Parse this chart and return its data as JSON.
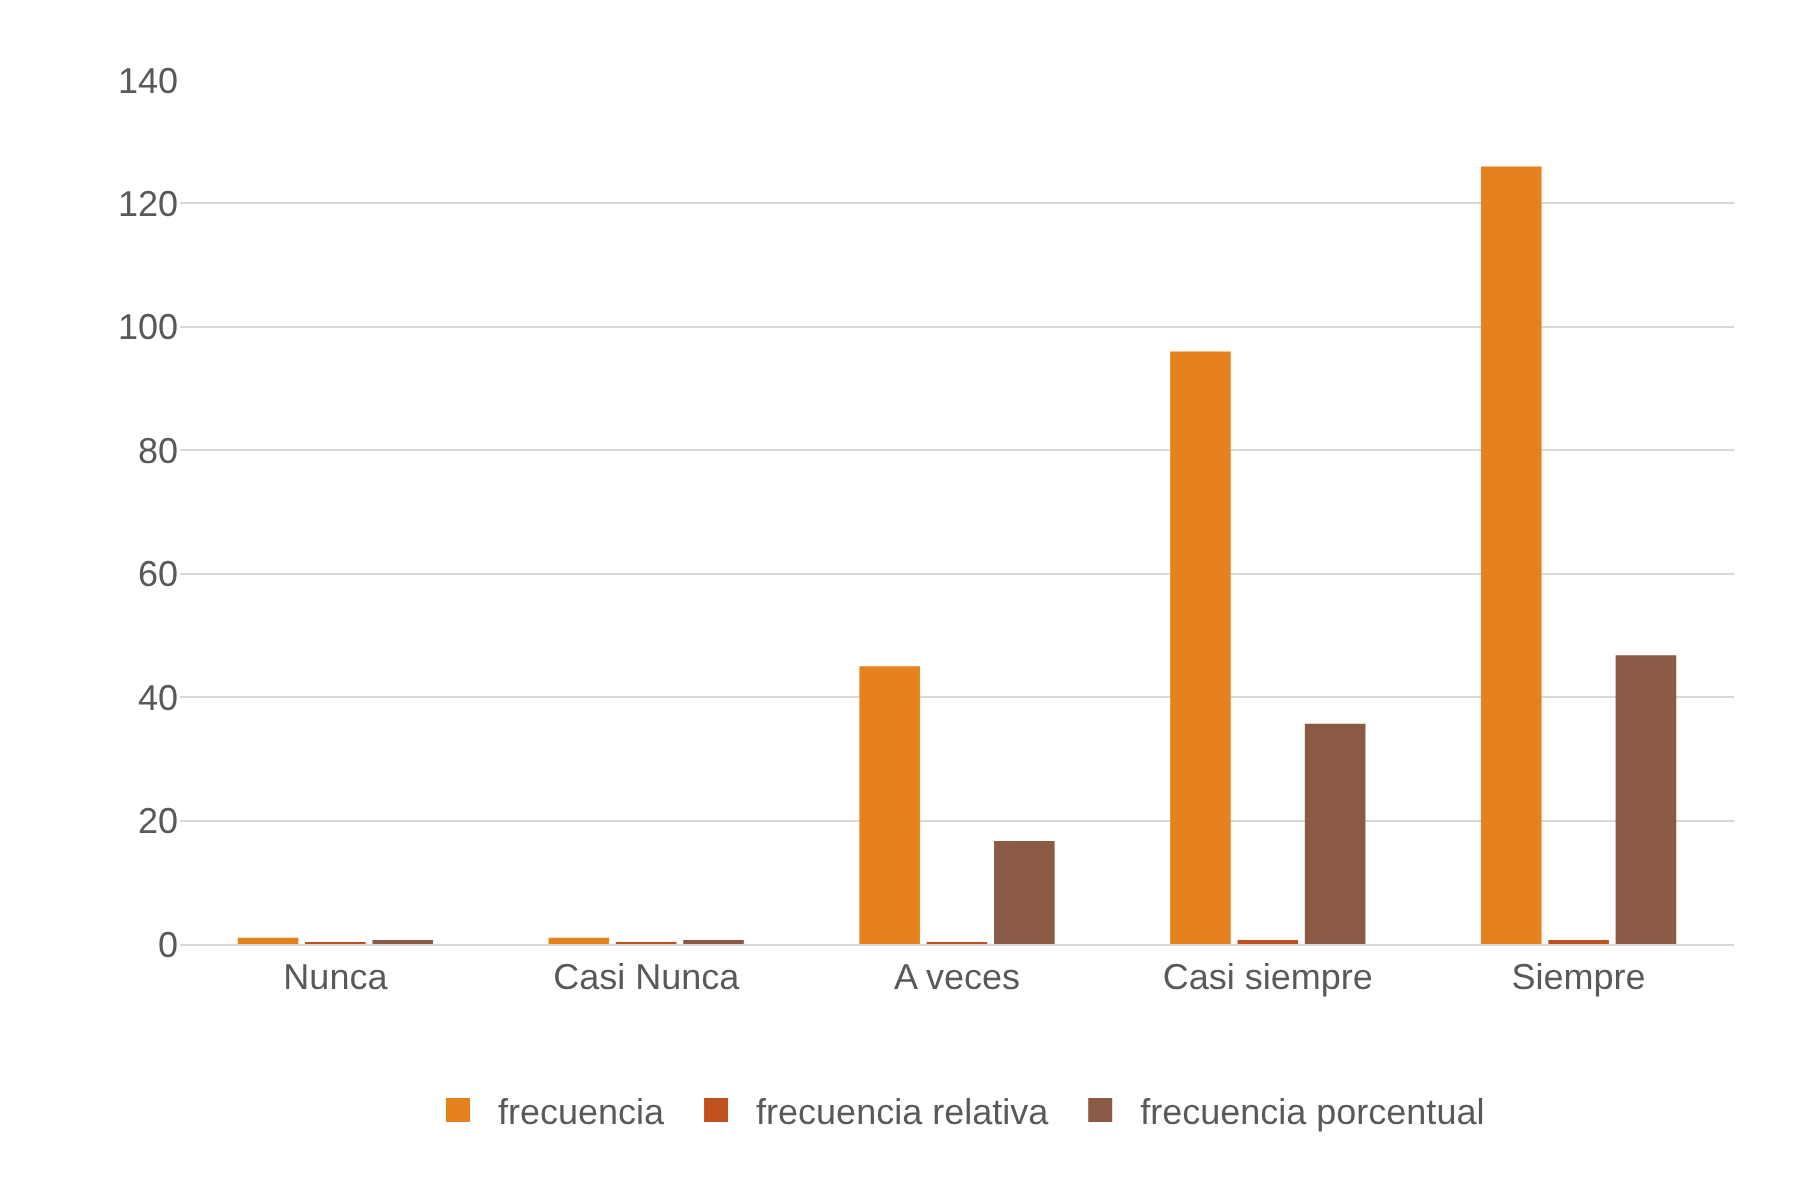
{
  "chart_data": {
    "type": "bar",
    "categories": [
      "Nunca",
      "Casi Nunca",
      "A veces",
      "Casi siempre",
      "Siempre"
    ],
    "series": [
      {
        "name": "frecuencia",
        "color": "#e6821e",
        "values": [
          1,
          1,
          45,
          96,
          126
        ]
      },
      {
        "name": "frecuencia relativa",
        "color": "#c0501e",
        "values": [
          0.004,
          0.004,
          0.167,
          0.357,
          0.468
        ]
      },
      {
        "name": "frecuencia porcentual",
        "color": "#8b5a44",
        "values": [
          0.4,
          0.4,
          16.7,
          35.7,
          46.8
        ]
      }
    ],
    "ylim": [
      0,
      140
    ],
    "yticks": [
      0,
      20,
      40,
      60,
      80,
      100,
      120,
      140
    ],
    "grid": "y",
    "legend": "bottom"
  }
}
